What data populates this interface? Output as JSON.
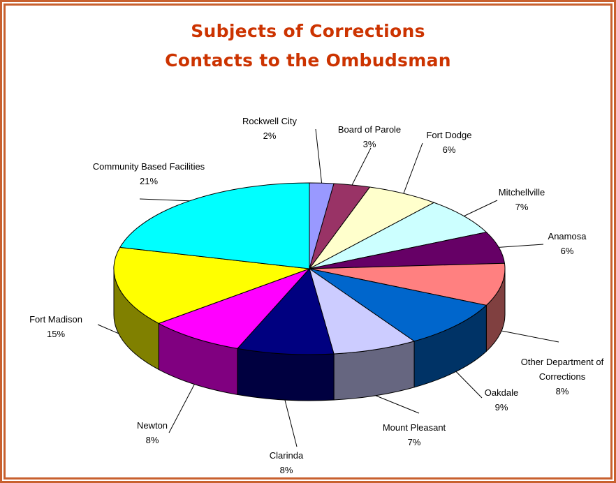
{
  "chart_data": {
    "type": "pie3d",
    "title": [
      "Subjects of Corrections",
      "Contacts to the Ombudsman"
    ],
    "categories": [
      "Rockwell City",
      "Board of Parole",
      "Fort Dodge",
      "Mitchellville",
      "Anamosa",
      "Other Department of Corrections",
      "Oakdale",
      "Mount Pleasant",
      "Clarinda",
      "Newton",
      "Fort Madison",
      "Community Based Facilities"
    ],
    "values": [
      2,
      3,
      6,
      7,
      6,
      8,
      9,
      7,
      8,
      8,
      15,
      21
    ],
    "value_labels": [
      "2%",
      "3%",
      "6%",
      "7%",
      "6%",
      "8%",
      "9%",
      "7%",
      "8%",
      "8%",
      "15%",
      "21%"
    ],
    "colors": [
      "#9999ff",
      "#993366",
      "#ffffcc",
      "#ccffff",
      "#660066",
      "#ff8080",
      "#0066cc",
      "#ccccff",
      "#000080",
      "#ff00ff",
      "#ffff00",
      "#00ffff"
    ]
  }
}
